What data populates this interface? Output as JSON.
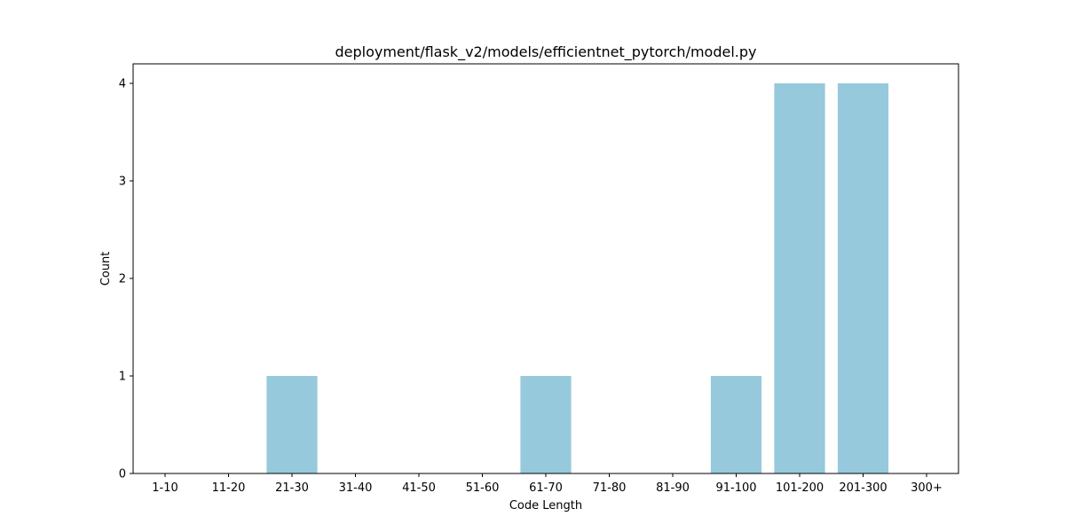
{
  "chart_data": {
    "type": "bar",
    "title": "deployment/flask_v2/models/efficientnet_pytorch/model.py",
    "xlabel": "Code Length",
    "ylabel": "Count",
    "categories": [
      "1-10",
      "11-20",
      "21-30",
      "31-40",
      "41-50",
      "51-60",
      "61-70",
      "71-80",
      "81-90",
      "91-100",
      "101-200",
      "201-300",
      "300+"
    ],
    "values": [
      0,
      0,
      1,
      0,
      0,
      0,
      1,
      0,
      0,
      1,
      4,
      4,
      0
    ],
    "ylim": [
      0,
      4.2
    ],
    "yticks": [
      0,
      1,
      2,
      3,
      4
    ],
    "bar_color": "#96c9dc",
    "grid": false,
    "legend": "none"
  }
}
